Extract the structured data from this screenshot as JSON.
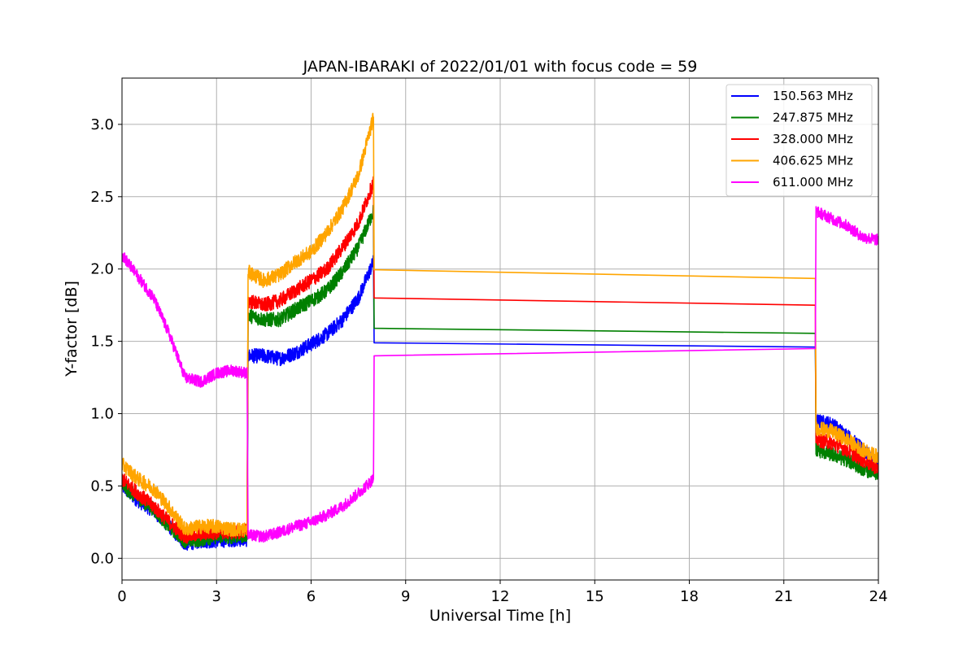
{
  "chart_data": {
    "type": "line",
    "title": "JAPAN-IBARAKI of 2022/01/01 with focus code = 59",
    "xlabel": "Universal Time [h]",
    "ylabel": "Y-factor [dB]",
    "xlim": [
      0,
      24
    ],
    "ylim": [
      -0.15,
      3.32
    ],
    "xticks": [
      0,
      3,
      6,
      9,
      12,
      15,
      18,
      21,
      24
    ],
    "yticks": [
      0.0,
      0.5,
      1.0,
      1.5,
      2.0,
      2.5,
      3.0
    ],
    "xtick_labels": [
      "0",
      "3",
      "6",
      "9",
      "12",
      "15",
      "18",
      "21",
      "24"
    ],
    "ytick_labels": [
      "0.0",
      "0.5",
      "1.0",
      "1.5",
      "2.0",
      "2.5",
      "3.0"
    ],
    "grid": true,
    "legend_position": "top-right",
    "series": [
      {
        "name": "150.563 MHz",
        "color": "#0000ff",
        "noise": 0.05,
        "points": [
          [
            0,
            0.5
          ],
          [
            0.5,
            0.4
          ],
          [
            1,
            0.33
          ],
          [
            1.5,
            0.22
          ],
          [
            2,
            0.1
          ],
          [
            2.5,
            0.12
          ],
          [
            3,
            0.12
          ],
          [
            3.5,
            0.13
          ],
          [
            3.97,
            0.13
          ],
          [
            4.0,
            1.4
          ],
          [
            4.5,
            1.4
          ],
          [
            5,
            1.38
          ],
          [
            5.5,
            1.42
          ],
          [
            6,
            1.48
          ],
          [
            6.5,
            1.55
          ],
          [
            7,
            1.65
          ],
          [
            7.5,
            1.8
          ],
          [
            7.98,
            2.05
          ],
          [
            8.0,
            1.49
          ],
          [
            22.0,
            1.46
          ],
          [
            22.02,
            0.95
          ],
          [
            22.5,
            0.93
          ],
          [
            23,
            0.85
          ],
          [
            23.5,
            0.75
          ],
          [
            24,
            0.65
          ]
        ]
      },
      {
        "name": "247.875 MHz",
        "color": "#008000",
        "noise": 0.05,
        "points": [
          [
            0,
            0.5
          ],
          [
            0.5,
            0.42
          ],
          [
            1,
            0.34
          ],
          [
            1.5,
            0.22
          ],
          [
            2,
            0.12
          ],
          [
            2.5,
            0.13
          ],
          [
            3,
            0.15
          ],
          [
            3.5,
            0.15
          ],
          [
            3.97,
            0.16
          ],
          [
            4.0,
            1.68
          ],
          [
            4.5,
            1.65
          ],
          [
            5,
            1.65
          ],
          [
            5.5,
            1.72
          ],
          [
            6,
            1.78
          ],
          [
            6.5,
            1.85
          ],
          [
            7,
            1.98
          ],
          [
            7.5,
            2.15
          ],
          [
            7.98,
            2.4
          ],
          [
            8.0,
            1.59
          ],
          [
            22.0,
            1.555
          ],
          [
            22.02,
            0.75
          ],
          [
            22.5,
            0.72
          ],
          [
            23,
            0.68
          ],
          [
            23.5,
            0.62
          ],
          [
            24,
            0.58
          ]
        ]
      },
      {
        "name": "328.000 MHz",
        "color": "#ff0000",
        "noise": 0.05,
        "points": [
          [
            0,
            0.55
          ],
          [
            0.5,
            0.45
          ],
          [
            1,
            0.36
          ],
          [
            1.5,
            0.25
          ],
          [
            2,
            0.15
          ],
          [
            2.5,
            0.17
          ],
          [
            3,
            0.18
          ],
          [
            3.5,
            0.18
          ],
          [
            3.97,
            0.19
          ],
          [
            4.0,
            1.78
          ],
          [
            4.5,
            1.75
          ],
          [
            5,
            1.78
          ],
          [
            5.5,
            1.85
          ],
          [
            6,
            1.92
          ],
          [
            6.5,
            2.0
          ],
          [
            7,
            2.15
          ],
          [
            7.5,
            2.32
          ],
          [
            7.98,
            2.6
          ],
          [
            8.0,
            1.8
          ],
          [
            22.0,
            1.75
          ],
          [
            22.02,
            0.82
          ],
          [
            22.5,
            0.8
          ],
          [
            23,
            0.75
          ],
          [
            23.5,
            0.68
          ],
          [
            24,
            0.62
          ]
        ]
      },
      {
        "name": "406.625 MHz",
        "color": "#ffa500",
        "noise": 0.05,
        "points": [
          [
            0,
            0.65
          ],
          [
            0.5,
            0.55
          ],
          [
            1,
            0.48
          ],
          [
            1.5,
            0.35
          ],
          [
            2,
            0.2
          ],
          [
            2.5,
            0.22
          ],
          [
            3,
            0.22
          ],
          [
            3.5,
            0.2
          ],
          [
            3.97,
            0.2
          ],
          [
            4.0,
            1.98
          ],
          [
            4.5,
            1.92
          ],
          [
            5,
            1.96
          ],
          [
            5.5,
            2.05
          ],
          [
            6,
            2.12
          ],
          [
            6.5,
            2.25
          ],
          [
            7,
            2.42
          ],
          [
            7.5,
            2.65
          ],
          [
            7.98,
            3.05
          ],
          [
            8.0,
            1.995
          ],
          [
            22.0,
            1.935
          ],
          [
            22.02,
            0.9
          ],
          [
            22.5,
            0.88
          ],
          [
            23,
            0.82
          ],
          [
            23.5,
            0.75
          ],
          [
            24,
            0.7
          ]
        ]
      },
      {
        "name": "611.000 MHz",
        "color": "#ff00ff",
        "noise": 0.04,
        "points": [
          [
            0,
            2.1
          ],
          [
            0.5,
            1.95
          ],
          [
            1,
            1.8
          ],
          [
            1.5,
            1.55
          ],
          [
            2,
            1.25
          ],
          [
            2.5,
            1.22
          ],
          [
            3,
            1.28
          ],
          [
            3.5,
            1.3
          ],
          [
            3.97,
            1.28
          ],
          [
            4.0,
            0.16
          ],
          [
            4.5,
            0.15
          ],
          [
            5,
            0.18
          ],
          [
            5.5,
            0.22
          ],
          [
            6,
            0.25
          ],
          [
            6.5,
            0.3
          ],
          [
            7,
            0.36
          ],
          [
            7.5,
            0.45
          ],
          [
            7.98,
            0.55
          ],
          [
            8.0,
            1.4
          ],
          [
            22.0,
            1.45
          ],
          [
            22.02,
            2.4
          ],
          [
            22.5,
            2.35
          ],
          [
            23,
            2.3
          ],
          [
            23.5,
            2.22
          ],
          [
            24,
            2.2
          ]
        ]
      }
    ]
  }
}
